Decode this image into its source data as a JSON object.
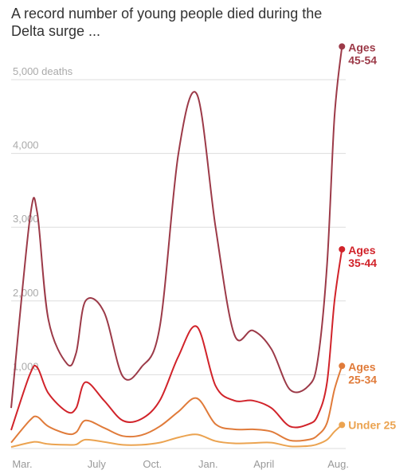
{
  "title": "A record number of young people died during the Delta surge ...",
  "chart_data": {
    "type": "line",
    "title": "A record number of young people died during the Delta surge ...",
    "xlabel": "",
    "ylabel": "",
    "ylim": [
      0,
      5500
    ],
    "y_ticks": [
      {
        "value": 1000,
        "label": "1,000"
      },
      {
        "value": 2000,
        "label": "2,000"
      },
      {
        "value": 3000,
        "label": "3,000"
      },
      {
        "value": 4000,
        "label": "4,000"
      },
      {
        "value": 5000,
        "label": "5,000 deaths"
      }
    ],
    "x_ticks": [
      {
        "value": 0.6,
        "label": "Mar."
      },
      {
        "value": 4.6,
        "label": "July"
      },
      {
        "value": 7.6,
        "label": "Oct."
      },
      {
        "value": 10.6,
        "label": "Jan."
      },
      {
        "value": 13.6,
        "label": "April"
      },
      {
        "value": 17.6,
        "label": "Aug."
      }
    ],
    "grid": true,
    "legend": "inline-right",
    "x": [
      0,
      1,
      1.4,
      2,
      3,
      3.5,
      4,
      5,
      6,
      7,
      8,
      9,
      10,
      11,
      12,
      13,
      14,
      15,
      16,
      16.5,
      17,
      17.4,
      17.8
    ],
    "series": [
      {
        "name": "Ages 45-54",
        "color": "#9c3a48",
        "values": [
          550,
          3100,
          3200,
          1750,
          1150,
          1300,
          2000,
          1850,
          980,
          1100,
          1650,
          4000,
          4800,
          3000,
          1550,
          1600,
          1350,
          800,
          850,
          1200,
          2500,
          4500,
          5450
        ]
      },
      {
        "name": "Ages 35-44",
        "color": "#d1232a",
        "values": [
          250,
          1000,
          1100,
          750,
          500,
          550,
          900,
          650,
          380,
          400,
          650,
          1250,
          1650,
          850,
          650,
          650,
          550,
          300,
          330,
          450,
          900,
          2000,
          2700
        ]
      },
      {
        "name": "Ages 25-34",
        "color": "#e07b3a",
        "values": [
          80,
          380,
          430,
          300,
          200,
          220,
          380,
          280,
          170,
          180,
          300,
          500,
          680,
          330,
          260,
          260,
          230,
          110,
          120,
          180,
          350,
          800,
          1120
        ]
      },
      {
        "name": "Under 25",
        "color": "#eba350",
        "values": [
          20,
          80,
          90,
          60,
          50,
          55,
          120,
          90,
          50,
          50,
          80,
          150,
          190,
          100,
          70,
          75,
          80,
          30,
          35,
          60,
          120,
          230,
          320
        ]
      }
    ]
  }
}
